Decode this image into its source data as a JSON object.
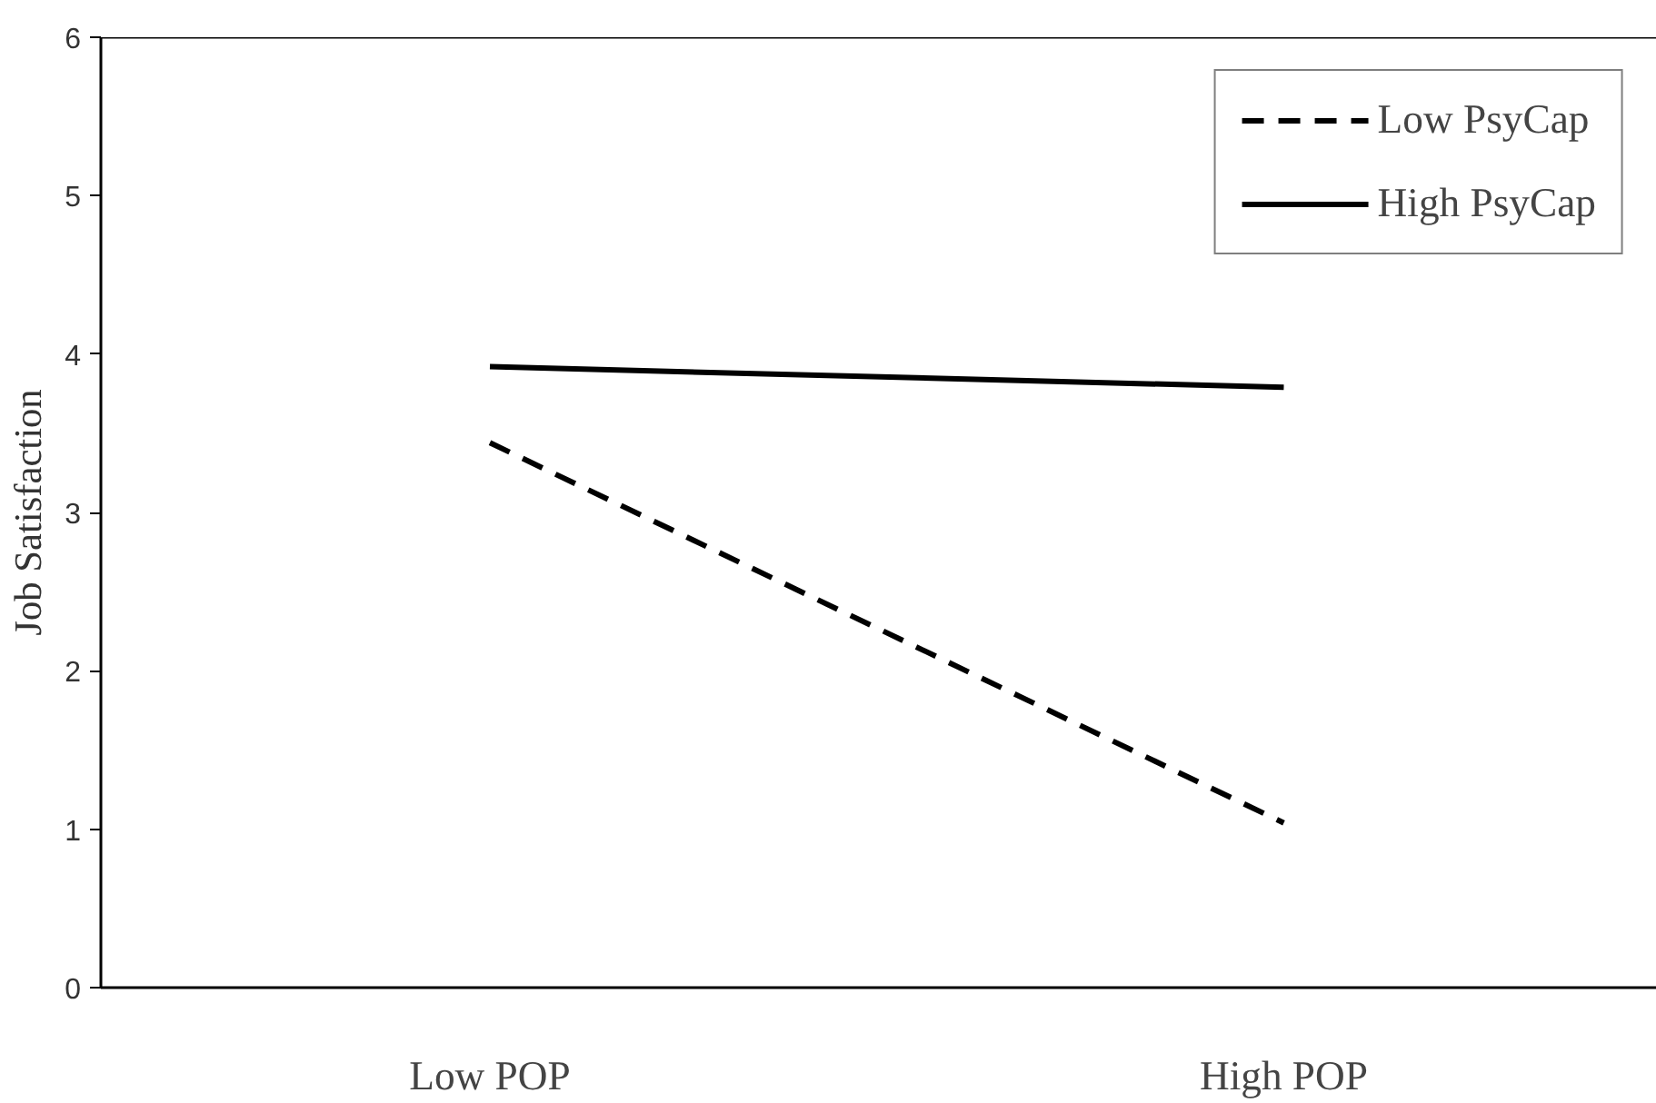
{
  "chart_data": {
    "type": "line",
    "ylabel": "Job Satisfaction",
    "categories": [
      "Low POP",
      "High POP"
    ],
    "series": [
      {
        "name": "Low PsyCap",
        "color": "#000000",
        "line_style": "dashed",
        "values": [
          3.44,
          1.04
        ]
      },
      {
        "name": "High PsyCap",
        "color": "#000000",
        "line_style": "solid",
        "values": [
          3.92,
          3.79
        ]
      }
    ],
    "ylim": [
      0,
      6
    ],
    "yticks": [
      0,
      1,
      2,
      3,
      4,
      5,
      6
    ],
    "grid": false,
    "legend": "top right",
    "marker": "none"
  }
}
